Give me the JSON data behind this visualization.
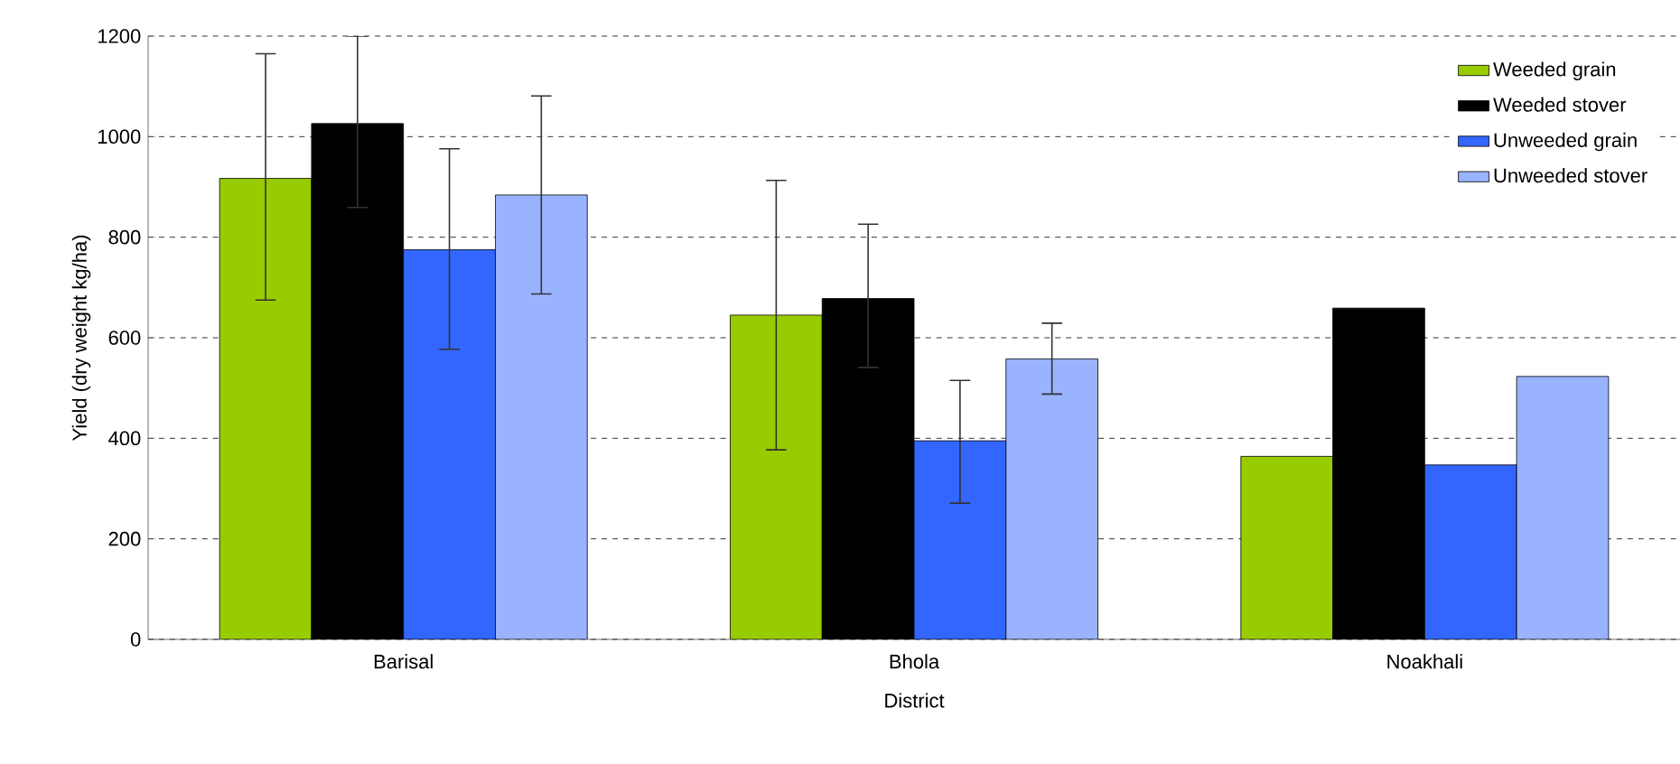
{
  "chart_data": {
    "type": "bar",
    "xlabel": "District",
    "ylabel": "Yield (dry weight kg/ha)",
    "categories": [
      "Barisal",
      "Bhola",
      "Noakhali"
    ],
    "series": [
      {
        "name": "Weeded grain",
        "color": "#99cc00",
        "values": [
          917,
          645,
          364
        ],
        "errors": [
          [
            675,
            1165
          ],
          [
            377,
            913
          ],
          null
        ]
      },
      {
        "name": "Weeded stover",
        "color": "#000000",
        "values": [
          1026,
          678,
          659
        ],
        "errors": [
          [
            859,
            1200
          ],
          [
            541,
            826
          ],
          null
        ]
      },
      {
        "name": "Unweeded grain",
        "color": "#3366ff",
        "values": [
          775,
          395,
          347
        ],
        "errors": [
          [
            577,
            976
          ],
          [
            271,
            515
          ],
          null
        ]
      },
      {
        "name": "Unweeded stover",
        "color": "#99b3ff",
        "values": [
          884,
          558,
          523
        ],
        "errors": [
          [
            687,
            1081
          ],
          [
            488,
            629
          ],
          null
        ]
      }
    ],
    "ylim": [
      0,
      1200
    ],
    "yticks": [
      0,
      200,
      400,
      600,
      800,
      1000,
      1200
    ],
    "grid": "y",
    "legend": "top right"
  }
}
